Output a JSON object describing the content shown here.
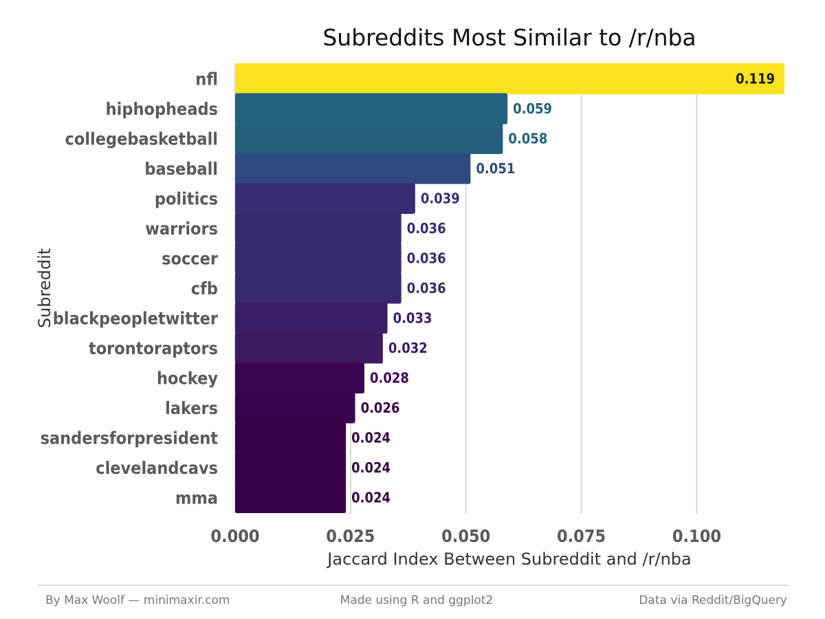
{
  "chart_data": {
    "type": "bar",
    "orientation": "horizontal",
    "title": "Subreddits Most Similar to /r/nba",
    "xlabel": "Jaccard Index Between Subreddit and /r/nba",
    "ylabel": "Subreddit",
    "xlim": [
      0,
      0.119
    ],
    "x_ticks": [
      0.0,
      0.025,
      0.05,
      0.075,
      0.1
    ],
    "x_tick_labels": [
      "0.000",
      "0.025",
      "0.050",
      "0.075",
      "0.100"
    ],
    "grid": "vertical major gridlines",
    "color_scale": "viridis",
    "categories": [
      "nfl",
      "hiphopheads",
      "collegebasketball",
      "baseball",
      "politics",
      "warriors",
      "soccer",
      "cfb",
      "blackpeopletwitter",
      "torontoraptors",
      "hockey",
      "lakers",
      "sandersforpresident",
      "clevelandcavs",
      "mma"
    ],
    "values": [
      0.119,
      0.059,
      0.058,
      0.051,
      0.039,
      0.036,
      0.036,
      0.036,
      0.033,
      0.032,
      0.028,
      0.026,
      0.024,
      0.024,
      0.024
    ],
    "value_labels": [
      "0.119",
      "0.059",
      "0.058",
      "0.051",
      "0.039",
      "0.036",
      "0.036",
      "0.036",
      "0.033",
      "0.032",
      "0.028",
      "0.026",
      "0.024",
      "0.024",
      "0.024"
    ],
    "colors": [
      "#fbe41f",
      "#23617d",
      "#24607b",
      "#2e4b7f",
      "#372d73",
      "#392a6d",
      "#392a6d",
      "#392a6d",
      "#3b1f66",
      "#3c1b63",
      "#3a0552",
      "#3a034e",
      "#380045",
      "#380045",
      "#380045"
    ]
  },
  "footer": {
    "left": "By Max Woolf — minimaxir.com",
    "center": "Made using R and ggplot2",
    "right": "Data via Reddit/BigQuery"
  }
}
